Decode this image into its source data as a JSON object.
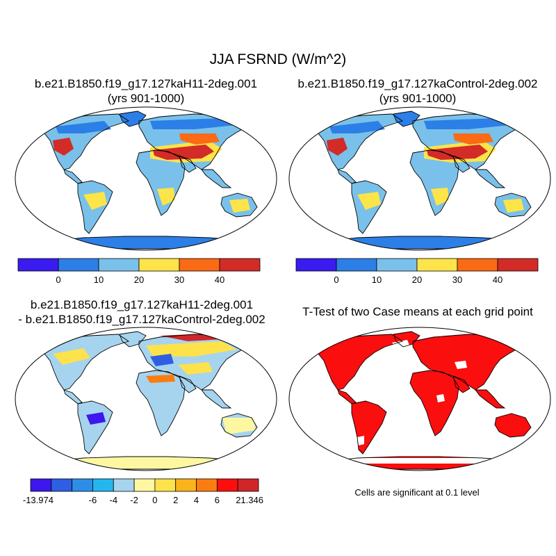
{
  "figure": {
    "title": "JJA FSRND (W/m^2)",
    "note": "Cells are significant at 0.1 level"
  },
  "panels": [
    {
      "id": "p1",
      "title_line1": "b.e21.B1850.f19_g17.127kaH11-2deg.001",
      "title_line2": "(yrs 901-1000)"
    },
    {
      "id": "p2",
      "title_line1": "b.e21.B1850.f19_g17.127kaControl-2deg.002",
      "title_line2": "(yrs 901-1000)"
    },
    {
      "id": "p3",
      "title_line1": "b.e21.B1850.f19_g17.127kaH11-2deg.001",
      "title_line2": "- b.e21.B1850.f19_g17.127kaControl-2deg.002"
    },
    {
      "id": "p4",
      "title_line1": "T-Test of two Case means at each grid point",
      "title_line2": ""
    }
  ],
  "colorbars": {
    "absolute": {
      "colors": [
        "#3a1cf0",
        "#2c7fe6",
        "#79c1ea",
        "#fde448",
        "#fb6a14",
        "#d32b27"
      ],
      "tick_labels": [
        "0",
        "10",
        "20",
        "30",
        "40"
      ]
    },
    "difference": {
      "colors": [
        "#3d17ee",
        "#2e5fe3",
        "#2d8ee8",
        "#24b6ee",
        "#a6d4ef",
        "#fdf7a2",
        "#fde24b",
        "#fbb31a",
        "#fb7c10",
        "#fb0e0e",
        "#d0262a"
      ],
      "tick_labels": [
        "-13.974",
        "-6",
        "-4",
        "-2",
        "0",
        "2",
        "4",
        "6",
        "21.346"
      ]
    }
  },
  "chart_data": [
    {
      "type": "heatmap",
      "variable": "FSRND",
      "season": "JJA",
      "units": "W/m^2",
      "projection": "Robinson",
      "legend": "colorbar below",
      "levels": [
        0,
        10,
        20,
        30,
        40
      ],
      "case": "b.e21.B1850.f19_g17.127kaH11-2deg.001"
    },
    {
      "type": "heatmap",
      "variable": "FSRND",
      "season": "JJA",
      "units": "W/m^2",
      "projection": "Robinson",
      "legend": "colorbar below",
      "levels": [
        0,
        10,
        20,
        30,
        40
      ],
      "case": "b.e21.B1850.f19_g17.127kaControl-2deg.002"
    },
    {
      "type": "heatmap",
      "variable": "FSRND difference",
      "season": "JJA",
      "units": "W/m^2",
      "projection": "Robinson",
      "legend": "colorbar below",
      "min": -13.974,
      "max": 21.346,
      "levels": [
        -6,
        -4,
        -2,
        0,
        2,
        4,
        6
      ]
    },
    {
      "type": "heatmap",
      "variable": "significance",
      "projection": "Robinson",
      "significance_level": 0.1
    }
  ]
}
